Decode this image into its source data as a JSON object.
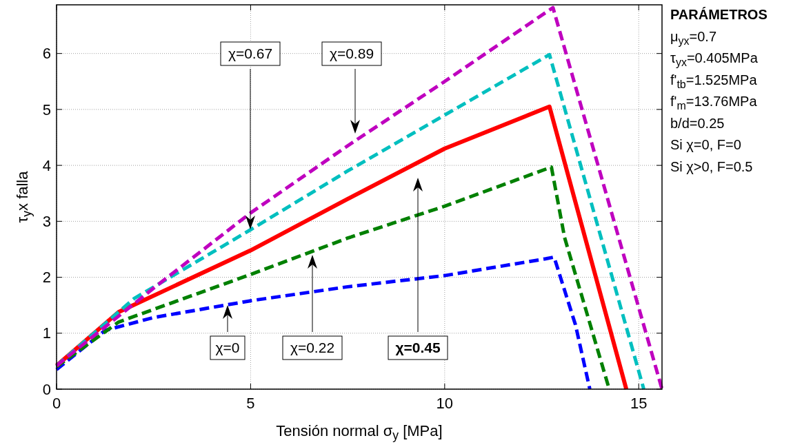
{
  "chart_data": {
    "type": "line",
    "xlabel": "Tensión normal σ$_{y}$ [MPa]",
    "ylabel": "τ$_{y}$x falla",
    "xlim": [
      0,
      15.6
    ],
    "ylim": [
      0,
      6.87
    ],
    "xticks": [
      0,
      5,
      10,
      15
    ],
    "yticks": [
      0,
      1,
      2,
      3,
      4,
      5,
      6
    ],
    "grid": true,
    "series": [
      {
        "color": "#0000ff",
        "line_style": "dashed",
        "x": [
          0,
          1.25,
          2.5,
          5,
          7.5,
          10,
          12.6,
          12.82,
          13.37,
          13.74
        ],
        "values": [
          0.35,
          1.05,
          1.28,
          1.58,
          1.83,
          2.03,
          2.33,
          2.36,
          1.15,
          0
        ]
      },
      {
        "color": "#008000",
        "line_style": "dashed",
        "x": [
          0,
          1.6,
          5,
          7.5,
          10,
          12.75,
          12.85,
          13.09,
          14.24
        ],
        "values": [
          0.4,
          1.2,
          2.05,
          2.7,
          3.27,
          3.97,
          3.6,
          2.71,
          0
        ]
      },
      {
        "color": "#ff0000",
        "line_style": "solid",
        "x": [
          0,
          1.6,
          5,
          7.5,
          10,
          12.7,
          14.68
        ],
        "values": [
          0.42,
          1.38,
          2.48,
          3.4,
          4.3,
          5.05,
          0
        ]
      },
      {
        "color": "#00bfbf",
        "line_style": "dashed",
        "x": [
          0,
          2,
          5,
          7.5,
          10,
          12.7,
          15.13
        ],
        "values": [
          0.42,
          1.62,
          2.85,
          3.9,
          4.9,
          5.98,
          0
        ]
      },
      {
        "color": "#bf00bf",
        "line_style": "dashed",
        "x": [
          0,
          2.6,
          5,
          7.5,
          10,
          12.79,
          15.6
        ],
        "values": [
          0.42,
          1.86,
          3.15,
          4.35,
          5.5,
          6.82,
          0
        ]
      }
    ],
    "annotations": [
      "χ=0",
      "χ=0.22",
      "χ=0.45",
      "χ=0.67",
      "χ=0.89",
      "PARÁMETROS",
      "μ$_{yx}$=0.7",
      "τ$_{yx}$=0.405MPa",
      "f'$_{tb}$=1.525MPa",
      "f'$_{m}$=13.76MPa",
      "b/d=0.25",
      "Si χ=0, F=0",
      "Si χ>0, F=0.5"
    ]
  }
}
